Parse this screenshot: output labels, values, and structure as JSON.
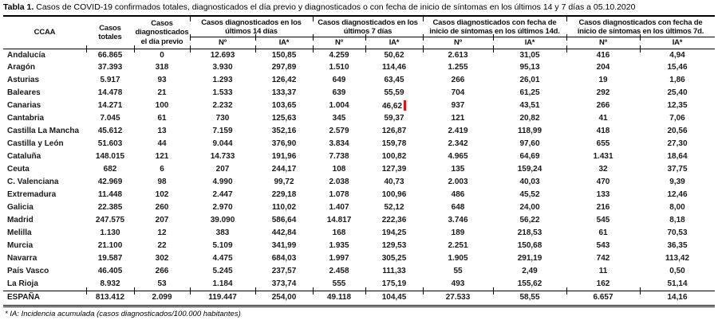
{
  "title": {
    "prefix": "Tabla 1.",
    "text": " Casos de COVID-19 confirmados totales, diagnosticados el día previo y diagnosticados o con fecha de inicio de síntomas en los últimos 14 y 7 días a 05.10.2020"
  },
  "table": {
    "col_headers": {
      "ccaa": "CCAA",
      "totales": "Casos\ntotales",
      "previo": "Casos\ndiagnosticados\nel día previo",
      "grp_14d": "Casos diagnosticados en los\núltimos 14 días",
      "grp_7d": "Casos diagnosticados en los\núltimos 7 días",
      "grp_sint_14d": "Casos diagnosticados con fecha de\ninicio de síntomas en los últimos 14d.",
      "grp_sint_7d": "Casos diagnosticados con fecha de\ninicio de síntomas en los últimos 7d.",
      "sub_n": "Nº",
      "sub_ia": "IA*"
    },
    "rows": [
      {
        "ccaa": "Andalucía",
        "values": [
          "66.865",
          "0",
          "12.693",
          "150,85",
          "4.259",
          "50,62",
          "2.613",
          "31,05",
          "416",
          "4,94"
        ]
      },
      {
        "ccaa": "Aragón",
        "values": [
          "37.393",
          "318",
          "3.930",
          "297,89",
          "1.510",
          "114,46",
          "1.255",
          "95,13",
          "204",
          "15,46"
        ]
      },
      {
        "ccaa": "Asturias",
        "values": [
          "5.917",
          "93",
          "1.293",
          "126,42",
          "649",
          "63,45",
          "266",
          "26,01",
          "19",
          "1,86"
        ]
      },
      {
        "ccaa": "Baleares",
        "values": [
          "14.478",
          "21",
          "1.533",
          "133,37",
          "639",
          "55,59",
          "704",
          "61,25",
          "292",
          "25,40"
        ]
      },
      {
        "ccaa": "Canarias",
        "values": [
          "14.271",
          "100",
          "2.232",
          "103,65",
          "1.004",
          "46,62",
          "937",
          "43,51",
          "266",
          "12,35"
        ],
        "marker_after": 5
      },
      {
        "ccaa": "Cantabria",
        "values": [
          "7.045",
          "61",
          "730",
          "125,63",
          "345",
          "59,37",
          "121",
          "20,82",
          "41",
          "7,06"
        ]
      },
      {
        "ccaa": "Castilla La Mancha",
        "values": [
          "45.612",
          "13",
          "7.159",
          "352,16",
          "2.579",
          "126,87",
          "2.419",
          "118,99",
          "418",
          "20,56"
        ]
      },
      {
        "ccaa": "Castilla y León",
        "values": [
          "51.603",
          "44",
          "9.044",
          "376,90",
          "3.834",
          "159,78",
          "2.342",
          "97,60",
          "655",
          "27,30"
        ]
      },
      {
        "ccaa": "Cataluña",
        "values": [
          "148.015",
          "121",
          "14.733",
          "191,96",
          "7.738",
          "100,82",
          "4.965",
          "64,69",
          "1.431",
          "18,64"
        ]
      },
      {
        "ccaa": "Ceuta",
        "values": [
          "682",
          "6",
          "207",
          "244,17",
          "108",
          "127,39",
          "135",
          "159,24",
          "32",
          "37,75"
        ]
      },
      {
        "ccaa": "C. Valenciana",
        "values": [
          "42.969",
          "98",
          "4.990",
          "99,72",
          "2.038",
          "40,73",
          "2.003",
          "40,03",
          "470",
          "9,39"
        ]
      },
      {
        "ccaa": "Extremadura",
        "values": [
          "11.448",
          "102",
          "2.447",
          "229,18",
          "1.078",
          "100,96",
          "486",
          "45,52",
          "133",
          "12,46"
        ]
      },
      {
        "ccaa": "Galicia",
        "values": [
          "22.385",
          "260",
          "2.970",
          "110,02",
          "1.407",
          "52,12",
          "648",
          "24,00",
          "216",
          "8,00"
        ]
      },
      {
        "ccaa": "Madrid",
        "values": [
          "247.575",
          "207",
          "39.090",
          "586,64",
          "14.817",
          "222,36",
          "3.746",
          "56,22",
          "545",
          "8,18"
        ]
      },
      {
        "ccaa": "Melilla",
        "values": [
          "1.130",
          "12",
          "383",
          "442,84",
          "168",
          "194,25",
          "189",
          "218,53",
          "61",
          "70,53"
        ]
      },
      {
        "ccaa": "Murcia",
        "values": [
          "21.100",
          "22",
          "5.109",
          "341,99",
          "1.935",
          "129,53",
          "2.251",
          "150,68",
          "543",
          "36,35"
        ]
      },
      {
        "ccaa": "Navarra",
        "values": [
          "19.587",
          "302",
          "4.475",
          "684,03",
          "1.997",
          "305,25",
          "1.905",
          "291,19",
          "742",
          "113,42"
        ]
      },
      {
        "ccaa": "País Vasco",
        "values": [
          "46.405",
          "266",
          "5.245",
          "237,57",
          "2.458",
          "111,33",
          "55",
          "2,49",
          "11",
          "0,50"
        ]
      },
      {
        "ccaa": "La Rioja",
        "values": [
          "8.932",
          "53",
          "1.184",
          "373,74",
          "555",
          "175,19",
          "493",
          "155,62",
          "162",
          "51,14"
        ]
      }
    ],
    "total_row": {
      "ccaa": "ESPAÑA",
      "values": [
        "813.412",
        "2.099",
        "119.447",
        "254,00",
        "49.118",
        "104,45",
        "27.533",
        "58,55",
        "6.657",
        "14,16"
      ]
    }
  },
  "annotation": {
    "color": "#ee0b0b",
    "row": "Canarias",
    "column": "IA* últimos 7 días",
    "value_marked": "46,62"
  },
  "footnote": "* IA: Incidencia acumulada (casos diagnosticados/100.000 habitantes)"
}
